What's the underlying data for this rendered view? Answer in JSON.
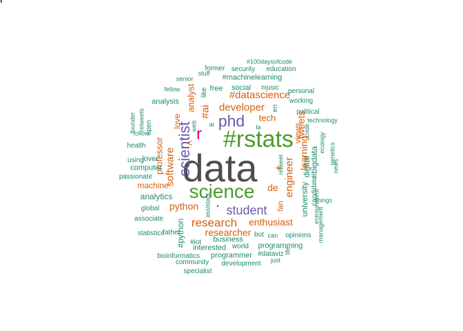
{
  "colors": {
    "dark": "#4d4d4d",
    "green": "#4c9a2a",
    "purple": "#6a5aa8",
    "orange": "#d55e0a",
    "teal": "#1b8a6b",
    "magenta": "#d6007e"
  },
  "words": [
    {
      "text": "data",
      "color": "dark"
    },
    {
      "text": "#rstats",
      "color": "green"
    },
    {
      "text": "science",
      "color": "green"
    },
    {
      "text": "phd",
      "color": "purple"
    },
    {
      "text": "r",
      "color": "magenta"
    },
    {
      "text": "scientist",
      "color": "purple"
    },
    {
      "text": "student",
      "color": "purple"
    },
    {
      "text": "research",
      "color": "orange"
    },
    {
      "text": "developer",
      "color": "orange"
    },
    {
      "text": "#datascience",
      "color": "orange"
    },
    {
      "text": "#ai",
      "color": "orange"
    },
    {
      "text": "software",
      "color": "orange"
    },
    {
      "text": "python",
      "color": "orange"
    },
    {
      "text": "enthusiast",
      "color": "orange"
    },
    {
      "text": "researcher",
      "color": "orange"
    },
    {
      "text": "engineer",
      "color": "orange"
    },
    {
      "text": "learning",
      "color": "orange"
    },
    {
      "text": "tweets",
      "color": "orange"
    },
    {
      "text": "views",
      "color": "orange"
    },
    {
      "text": "professor",
      "color": "orange"
    },
    {
      "text": "analyst",
      "color": "orange"
    },
    {
      "text": "machine",
      "color": "orange"
    },
    {
      "text": "tech",
      "color": "orange"
    },
    {
      "text": "de",
      "color": "orange"
    },
    {
      "text": "love",
      "color": "orange"
    },
    {
      "text": "+",
      "color": "orange"
    },
    {
      "text": "fan",
      "color": "orange"
    },
    {
      "text": "<",
      "color": "orange"
    },
    {
      "text": "•",
      "color": "purple"
    },
    {
      "text": "analytics",
      "color": "teal"
    },
    {
      "text": "analysis",
      "color": "teal"
    },
    {
      "text": "computer",
      "color": "teal"
    },
    {
      "text": "lover",
      "color": "teal"
    },
    {
      "text": "business",
      "color": "teal"
    },
    {
      "text": "interested",
      "color": "teal"
    },
    {
      "text": "programming",
      "color": "teal"
    },
    {
      "text": "programmer",
      "color": "teal"
    },
    {
      "text": "social",
      "color": "teal"
    },
    {
      "text": "free",
      "color": "teal"
    },
    {
      "text": "#machinelearning",
      "color": "teal"
    },
    {
      "text": "music",
      "color": "teal"
    },
    {
      "text": "university",
      "color": "teal"
    },
    {
      "text": "candidate",
      "color": "teal"
    },
    {
      "text": "#bigdata",
      "color": "teal"
    },
    {
      "text": "digital",
      "color": "teal"
    },
    {
      "text": "political",
      "color": "teal"
    },
    {
      "text": "technology",
      "color": "teal"
    },
    {
      "text": "opinions",
      "color": "teal"
    },
    {
      "text": "bot",
      "color": "teal"
    },
    {
      "text": "can",
      "color": "teal"
    },
    {
      "text": "world",
      "color": "teal"
    },
    {
      "text": "#python",
      "color": "teal"
    },
    {
      "text": "#iot",
      "color": "teal"
    },
    {
      "text": "#dataviz",
      "color": "teal"
    },
    {
      "text": "just",
      "color": "teal"
    },
    {
      "text": "development",
      "color": "teal"
    },
    {
      "text": "community",
      "color": "teal"
    },
    {
      "text": "bioinformatics",
      "color": "teal"
    },
    {
      "text": "specialist",
      "color": "teal"
    },
    {
      "text": "statistics",
      "color": "teal"
    },
    {
      "text": "associate",
      "color": "teal"
    },
    {
      "text": "global",
      "color": "teal"
    },
    {
      "text": "passionate",
      "color": "teal"
    },
    {
      "text": "using",
      "color": "teal"
    },
    {
      "text": "health",
      "color": "teal"
    },
    {
      "text": "follow",
      "color": "teal"
    },
    {
      "text": "founder",
      "color": "teal"
    },
    {
      "text": "retweets",
      "color": "teal"
    },
    {
      "text": "open",
      "color": "teal"
    },
    {
      "text": "fellow",
      "color": "teal"
    },
    {
      "text": "senior",
      "color": "teal"
    },
    {
      "text": "stuff",
      "color": "teal"
    },
    {
      "text": "former",
      "color": "teal"
    },
    {
      "text": "security",
      "color": "teal"
    },
    {
      "text": "#100daysofcode",
      "color": "teal"
    },
    {
      "text": "education",
      "color": "teal"
    },
    {
      "text": "personal",
      "color": "teal"
    },
    {
      "text": "working",
      "color": "teal"
    },
    {
      "text": "like",
      "color": "teal"
    },
    {
      "text": "en",
      "color": "teal"
    },
    {
      "text": "web",
      "color": "teal"
    },
    {
      "text": "ai",
      "color": "teal"
    },
    {
      "text": "la",
      "color": "teal"
    },
    {
      "text": "code",
      "color": "teal"
    },
    {
      "text": "ecology",
      "color": "teal"
    },
    {
      "text": "genetics",
      "color": "teal"
    },
    {
      "text": "news",
      "color": "teal"
    },
    {
      "text": "things",
      "color": "teal"
    },
    {
      "text": "entrepreneur",
      "color": "teal"
    },
    {
      "text": "management",
      "color": "teal"
    },
    {
      "text": "retweet",
      "color": "teal"
    },
    {
      "text": "life",
      "color": "teal"
    },
    {
      "text": "father",
      "color": "teal"
    },
    {
      "text": "assistant",
      "color": "teal"
    },
    {
      "text": "ll",
      "color": "teal"
    }
  ]
}
